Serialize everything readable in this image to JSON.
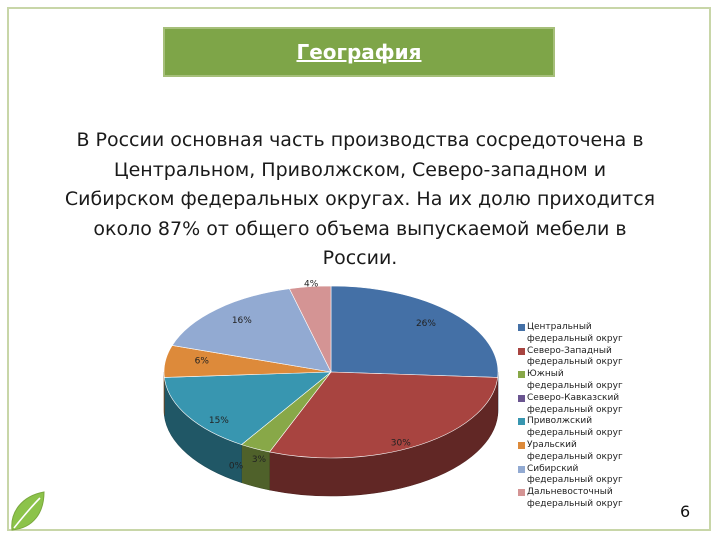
{
  "slide": {
    "title": "География",
    "body": "В России основная часть производства сосредоточена в Центральном, Приволжском, Северо-западном и Сибирском федеральных округах. На их долю приходится около 87% от общего объема выпускаемой мебели в России.",
    "page_number": "6"
  },
  "chart_data": {
    "type": "pie",
    "title": "",
    "categories": [
      "Центральный федеральный округ",
      "Северо-Западный федеральный округ",
      "Южный федеральный округ",
      "Северо-Кавказский федеральный округ",
      "Приволжский федеральный округ",
      "Уральский федеральный округ",
      "Сибирский федеральный округ",
      "Дальневосточный федеральный округ"
    ],
    "values": [
      26,
      30,
      3,
      0,
      15,
      6,
      16,
      4
    ],
    "labels": [
      "26%",
      "30%",
      "3%",
      "0%",
      "15%",
      "6%",
      "16%",
      "4%"
    ],
    "colors": [
      "#4470a6",
      "#a84440",
      "#88a848",
      "#6a5590",
      "#3896b0",
      "#dd8a3a",
      "#92aad2",
      "#d49494"
    ],
    "legend_position": "right"
  }
}
